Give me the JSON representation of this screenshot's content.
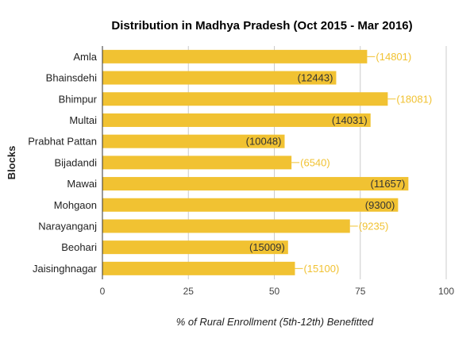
{
  "colors": {
    "bar": "#f1c232",
    "label_inside": "#333333",
    "label_outside": "#f1c232",
    "grid": "#cccccc",
    "axis": "#333333"
  },
  "chart_data": {
    "type": "bar",
    "orientation": "horizontal",
    "title": "Distribution in Madhya Pradesh (Oct 2015 - Mar 2016)",
    "xlabel": "% of Rural Enrollment (5th-12th) Benefitted",
    "ylabel": "Blocks",
    "xlim": [
      0,
      100
    ],
    "xticks": [
      0,
      25,
      50,
      75,
      100
    ],
    "grid": true,
    "legend": "none",
    "categories": [
      "Amla",
      "Bhainsdehi",
      "Bhimpur",
      "Multai",
      "Prabhat Pattan",
      "Bijadandi",
      "Mawai",
      "Mohgaon",
      "Narayanganj",
      "Beohari",
      "Jaisinghnagar"
    ],
    "values": [
      77,
      68,
      83,
      78,
      53,
      55,
      89,
      86,
      72,
      54,
      56
    ],
    "data_labels": [
      "(14801)",
      "(12443)",
      "(18081)",
      "(14031)",
      "(10048)",
      "(6540)",
      "(11657)",
      "(9300)",
      "(9235)",
      "(15009)",
      "(15100)"
    ],
    "label_inside": [
      false,
      true,
      false,
      true,
      true,
      false,
      true,
      true,
      false,
      true,
      false
    ]
  }
}
